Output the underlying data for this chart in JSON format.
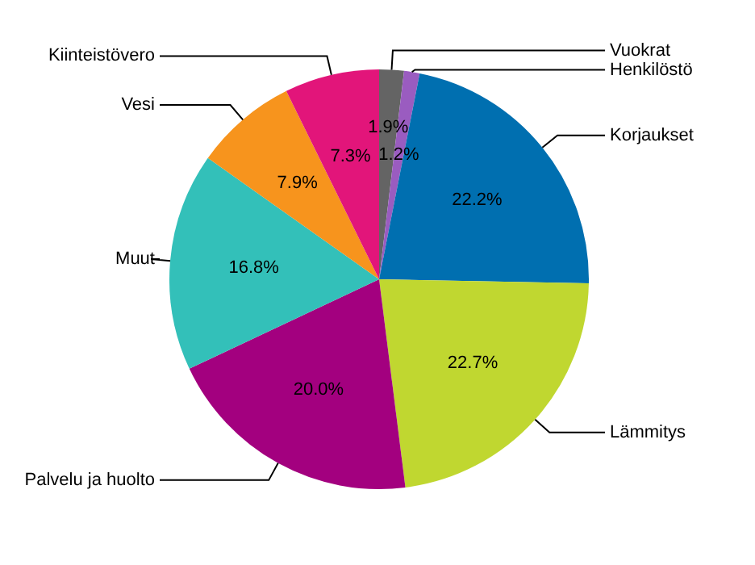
{
  "chart_data": {
    "type": "pie",
    "categories": [
      "Vuokrat",
      "Henkilöstö",
      "Korjaukset",
      "Lämmitys",
      "Palvelu ja huolto",
      "Muut",
      "Vesi",
      "Kiinteistövero"
    ],
    "values": [
      1.9,
      1.2,
      22.2,
      22.7,
      20.0,
      16.8,
      7.9,
      7.3
    ],
    "value_labels": [
      "1.9%",
      "1.2%",
      "22.2%",
      "22.7%",
      "20.0%",
      "16.8%",
      "7.9%",
      "7.3%"
    ],
    "colors": [
      "#646464",
      "#9a5cc0",
      "#006fb0",
      "#c0d730",
      "#a3007f",
      "#33c0b9",
      "#f7941d",
      "#e2157a"
    ],
    "legend": false
  }
}
